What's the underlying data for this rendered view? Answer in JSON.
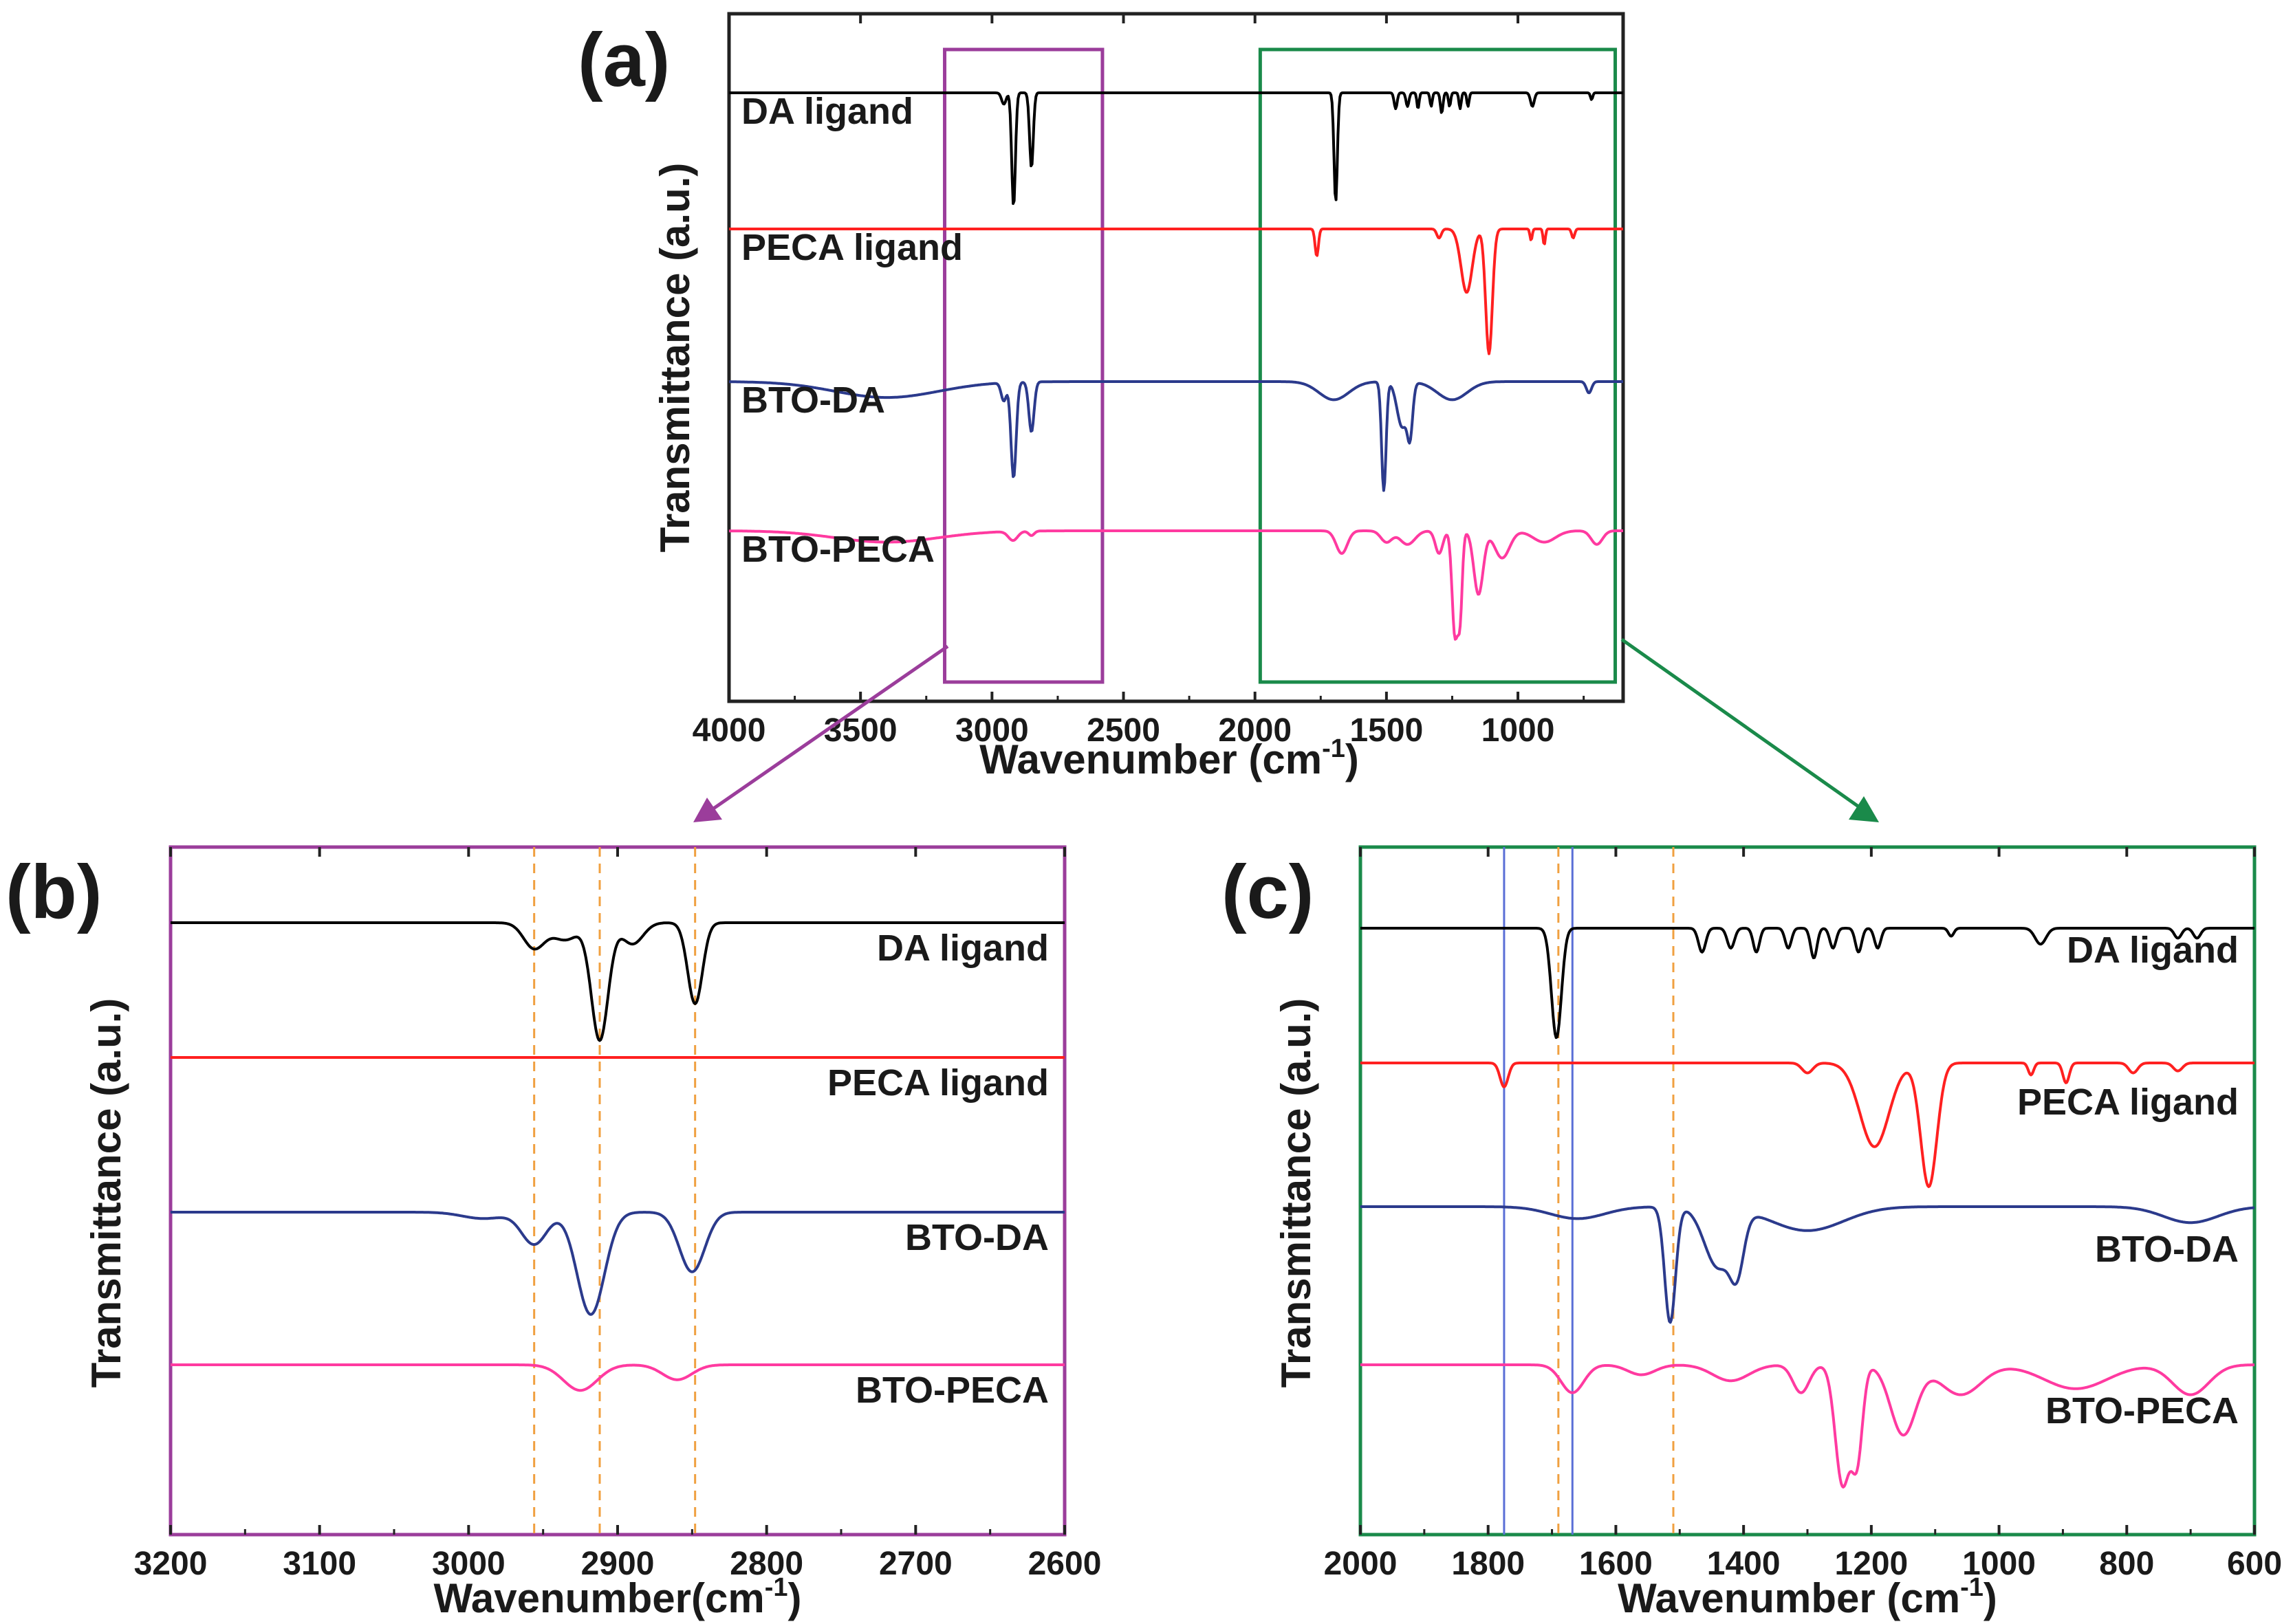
{
  "chart_data": [
    {
      "panel": "(a)",
      "type": "line",
      "xlabel": "Wavenumber",
      "xunit": "(cm",
      "xunit_sup": "-1",
      "xunit_close": ")",
      "ylabel": "Transmittance (a.u.)",
      "xlim": [
        4000,
        600
      ],
      "x_reversed": true,
      "xticks": [
        4000,
        3500,
        3000,
        2500,
        2000,
        1500,
        1000
      ],
      "y_ticks_shown": false,
      "highlight_boxes": [
        {
          "x": [
            3180,
            2580
          ],
          "color": "#9b3d9b"
        },
        {
          "x": [
            1980,
            630
          ],
          "color": "#1a8a4a"
        }
      ],
      "series": [
        {
          "name": "DA ligand",
          "color": "#000000",
          "baseline": 0.0,
          "peaks": [
            [
              2955,
              0.05,
              12
            ],
            [
              2918,
              0.5,
              10
            ],
            [
              2850,
              0.33,
              10
            ],
            [
              1693,
              0.48,
              9
            ],
            [
              1465,
              0.07,
              8
            ],
            [
              1420,
              0.06,
              8
            ],
            [
              1380,
              0.07,
              6
            ],
            [
              1330,
              0.06,
              6
            ],
            [
              1290,
              0.09,
              7
            ],
            [
              1260,
              0.06,
              6
            ],
            [
              1220,
              0.07,
              6
            ],
            [
              1190,
              0.06,
              6
            ],
            [
              945,
              0.06,
              10
            ],
            [
              720,
              0.03,
              6
            ]
          ]
        },
        {
          "name": "PECA ligand",
          "color": "#ff2020",
          "baseline": 0.0,
          "peaks": [
            [
              1765,
              0.12,
              9
            ],
            [
              1300,
              0.04,
              12
            ],
            [
              1195,
              0.28,
              30
            ],
            [
              1110,
              0.55,
              18
            ],
            [
              950,
              0.05,
              6
            ],
            [
              900,
              0.07,
              6
            ],
            [
              790,
              0.04,
              8
            ]
          ]
        },
        {
          "name": "BTO-DA",
          "color": "#2b3a8c",
          "baseline": 0.0,
          "peaks": [
            [
              3400,
              0.07,
              280
            ],
            [
              2955,
              0.08,
              14
            ],
            [
              2918,
              0.42,
              14
            ],
            [
              2850,
              0.22,
              14
            ],
            [
              1700,
              0.08,
              80
            ],
            [
              1510,
              0.48,
              12
            ],
            [
              1440,
              0.2,
              28
            ],
            [
              1410,
              0.2,
              14
            ],
            [
              1250,
              0.08,
              80
            ],
            [
              730,
              0.05,
              14
            ]
          ]
        },
        {
          "name": "BTO-PECA",
          "color": "#ff3aa0",
          "baseline": 0.0,
          "peaks": [
            [
              3400,
              0.05,
              280
            ],
            [
              2920,
              0.04,
              25
            ],
            [
              2850,
              0.02,
              15
            ],
            [
              1670,
              0.1,
              30
            ],
            [
              1500,
              0.05,
              30
            ],
            [
              1420,
              0.06,
              40
            ],
            [
              1300,
              0.1,
              20
            ],
            [
              1240,
              0.45,
              15
            ],
            [
              1220,
              0.35,
              12
            ],
            [
              1150,
              0.28,
              25
            ],
            [
              1060,
              0.12,
              40
            ],
            [
              900,
              0.05,
              60
            ],
            [
              700,
              0.06,
              30
            ]
          ]
        }
      ]
    },
    {
      "panel": "(b)",
      "type": "line",
      "xlabel": "Wavenumber",
      "xunit": "(cm",
      "xunit_sup": "-1",
      "xunit_close": ")",
      "ylabel": "Transmittance (a.u.)",
      "xlim": [
        3200,
        2600
      ],
      "x_reversed": true,
      "xticks": [
        3200,
        3100,
        3000,
        2900,
        2800,
        2700,
        2600
      ],
      "y_ticks_shown": false,
      "border_color": "#9b3d9b",
      "dashed_lines": [
        2956,
        2912,
        2848
      ],
      "dashed_color": "#f0a040",
      "series": [
        {
          "name": "DA ligand",
          "color": "#000000",
          "peaks": [
            [
              2956,
              0.12,
              10
            ],
            [
              2935,
              0.08,
              12
            ],
            [
              2912,
              0.55,
              8
            ],
            [
              2890,
              0.1,
              10
            ],
            [
              2848,
              0.38,
              7
            ]
          ]
        },
        {
          "name": "PECA ligand",
          "color": "#ff2020",
          "peaks": []
        },
        {
          "name": "BTO-DA",
          "color": "#2b3a8c",
          "peaks": [
            [
              2956,
              0.15,
              12
            ],
            [
              2918,
              0.48,
              13
            ],
            [
              2850,
              0.28,
              12
            ],
            [
              2990,
              0.03,
              20
            ]
          ]
        },
        {
          "name": "BTO-PECA",
          "color": "#ff3aa0",
          "peaks": [
            [
              2925,
              0.12,
              16
            ],
            [
              2860,
              0.07,
              14
            ]
          ]
        }
      ]
    },
    {
      "panel": "(c)",
      "type": "line",
      "xlabel": "Wavenumber",
      "xunit": "(cm",
      "xunit_sup": "-1",
      "xunit_close": ")",
      "ylabel": "Transmittance (a.u.)",
      "xlim": [
        2000,
        600
      ],
      "x_reversed": true,
      "xticks": [
        2000,
        1800,
        1600,
        1400,
        1200,
        1000,
        800,
        600
      ],
      "y_ticks_shown": false,
      "border_color": "#1a8a4a",
      "solid_lines": [
        1775,
        1668
      ],
      "solid_color": "#5a6fd6",
      "dashed_lines": [
        1690,
        1510
      ],
      "dashed_color": "#f0a040",
      "series": [
        {
          "name": "DA ligand",
          "color": "#000000",
          "peaks": [
            [
              1693,
              0.55,
              11
            ],
            [
              1465,
              0.12,
              8
            ],
            [
              1420,
              0.1,
              8
            ],
            [
              1380,
              0.12,
              7
            ],
            [
              1330,
              0.1,
              7
            ],
            [
              1290,
              0.15,
              7
            ],
            [
              1260,
              0.1,
              7
            ],
            [
              1220,
              0.12,
              7
            ],
            [
              1190,
              0.1,
              7
            ],
            [
              1075,
              0.04,
              6
            ],
            [
              935,
              0.08,
              12
            ],
            [
              720,
              0.05,
              8
            ],
            [
              690,
              0.05,
              8
            ]
          ]
        },
        {
          "name": "PECA ligand",
          "color": "#ff2020",
          "peaks": [
            [
              1775,
              0.12,
              9
            ],
            [
              1300,
              0.05,
              12
            ],
            [
              1195,
              0.42,
              32
            ],
            [
              1110,
              0.62,
              18
            ],
            [
              950,
              0.06,
              6
            ],
            [
              895,
              0.1,
              7
            ],
            [
              790,
              0.05,
              10
            ],
            [
              720,
              0.04,
              10
            ]
          ]
        },
        {
          "name": "BTO-DA",
          "color": "#2b3a8c",
          "peaks": [
            [
              1660,
              0.06,
              60
            ],
            [
              1515,
              0.58,
              12
            ],
            [
              1440,
              0.3,
              30
            ],
            [
              1410,
              0.25,
              15
            ],
            [
              1300,
              0.12,
              80
            ],
            [
              700,
              0.08,
              60
            ]
          ]
        },
        {
          "name": "BTO-PECA",
          "color": "#ff3aa0",
          "peaks": [
            [
              1668,
              0.14,
              25
            ],
            [
              1560,
              0.05,
              30
            ],
            [
              1420,
              0.08,
              40
            ],
            [
              1310,
              0.14,
              18
            ],
            [
              1245,
              0.6,
              16
            ],
            [
              1222,
              0.45,
              12
            ],
            [
              1150,
              0.35,
              28
            ],
            [
              1060,
              0.15,
              45
            ],
            [
              880,
              0.12,
              70
            ],
            [
              700,
              0.15,
              40
            ]
          ]
        }
      ]
    }
  ]
}
